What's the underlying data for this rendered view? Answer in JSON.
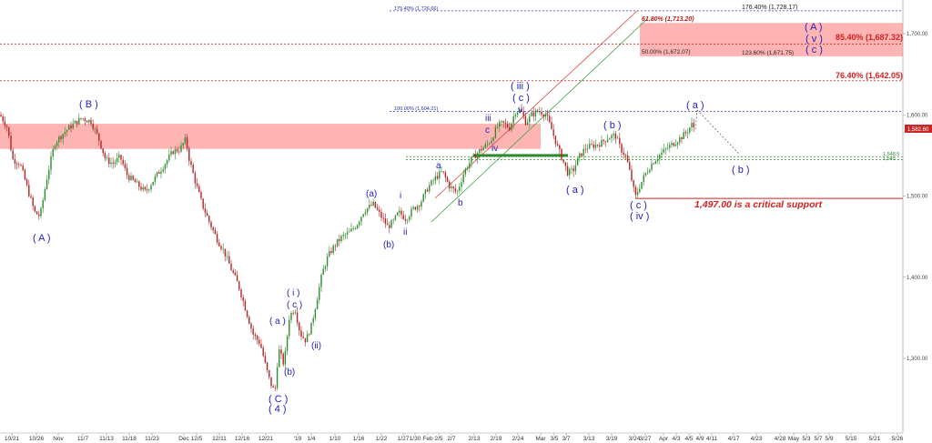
{
  "chart_data": {
    "type": "candlestick",
    "ylim": [
      1215,
      1737
    ],
    "y_ticks": [
      "1,700.00",
      "1,600.00",
      "1,500.00",
      "1,400.00",
      "1,300.00"
    ],
    "x_ticks": [
      "10/21",
      "10/26",
      "Nov",
      "11/7",
      "11/13",
      "11/18",
      "11/23",
      "Dec",
      "12/5",
      "12/11",
      "12/16",
      "12/21",
      "'19",
      "1/4",
      "1/10",
      "1/16",
      "1/22",
      "1/27",
      "1/30",
      "Feb",
      "2/5",
      "2/7",
      "2/13",
      "2/19",
      "2/24",
      "Mar",
      "3/5",
      "3/7",
      "3/13",
      "3/19",
      "3/24",
      "3/27",
      "Apr",
      "4/3",
      "4/5",
      "4/9",
      "4/11",
      "4/17",
      "4/23",
      "4/28",
      "May",
      "5/3",
      "5/7",
      "5/9",
      "5/15",
      "5/21",
      "5/26"
    ],
    "last_price": "1,582.60",
    "colors": {
      "up": "#2e8b2e",
      "down": "#b22222",
      "wave_label": "#1f1fbf",
      "fib_red": "#d22020",
      "fib_blue": "#3a3ad0",
      "zone": "#ff9b9b"
    },
    "price_path": [
      [
        0,
        1600
      ],
      [
        8,
        1585
      ],
      [
        14,
        1545
      ],
      [
        22,
        1540
      ],
      [
        30,
        1510
      ],
      [
        38,
        1480
      ],
      [
        44,
        1475
      ],
      [
        52,
        1525
      ],
      [
        60,
        1565
      ],
      [
        70,
        1578
      ],
      [
        80,
        1588
      ],
      [
        90,
        1596
      ],
      [
        100,
        1592
      ],
      [
        108,
        1572
      ],
      [
        116,
        1545
      ],
      [
        124,
        1540
      ],
      [
        132,
        1548
      ],
      [
        140,
        1525
      ],
      [
        150,
        1515
      ],
      [
        160,
        1505
      ],
      [
        170,
        1522
      ],
      [
        180,
        1538
      ],
      [
        190,
        1555
      ],
      [
        198,
        1558
      ],
      [
        204,
        1570
      ],
      [
        208,
        1545
      ],
      [
        214,
        1520
      ],
      [
        222,
        1490
      ],
      [
        230,
        1468
      ],
      [
        238,
        1448
      ],
      [
        246,
        1432
      ],
      [
        254,
        1410
      ],
      [
        262,
        1390
      ],
      [
        270,
        1360
      ],
      [
        278,
        1330
      ],
      [
        286,
        1318
      ],
      [
        292,
        1290
      ],
      [
        297,
        1270
      ],
      [
        302,
        1258
      ],
      [
        306,
        1312
      ],
      [
        312,
        1292
      ],
      [
        318,
        1352
      ],
      [
        324,
        1362
      ],
      [
        330,
        1330
      ],
      [
        336,
        1322
      ],
      [
        342,
        1340
      ],
      [
        348,
        1372
      ],
      [
        354,
        1405
      ],
      [
        360,
        1425
      ],
      [
        368,
        1440
      ],
      [
        376,
        1450
      ],
      [
        384,
        1455
      ],
      [
        392,
        1465
      ],
      [
        400,
        1482
      ],
      [
        410,
        1490
      ],
      [
        418,
        1476
      ],
      [
        426,
        1462
      ],
      [
        432,
        1468
      ],
      [
        438,
        1480
      ],
      [
        446,
        1472
      ],
      [
        454,
        1484
      ],
      [
        462,
        1492
      ],
      [
        470,
        1510
      ],
      [
        478,
        1522
      ],
      [
        486,
        1530
      ],
      [
        494,
        1512
      ],
      [
        502,
        1504
      ],
      [
        510,
        1530
      ],
      [
        518,
        1545
      ],
      [
        526,
        1555
      ],
      [
        534,
        1562
      ],
      [
        540,
        1570
      ],
      [
        546,
        1585
      ],
      [
        552,
        1590
      ],
      [
        560,
        1584
      ],
      [
        566,
        1604
      ],
      [
        572,
        1606
      ],
      [
        578,
        1590
      ],
      [
        584,
        1600
      ],
      [
        592,
        1605
      ],
      [
        600,
        1600
      ],
      [
        606,
        1582
      ],
      [
        612,
        1562
      ],
      [
        618,
        1545
      ],
      [
        624,
        1528
      ],
      [
        630,
        1532
      ],
      [
        636,
        1548
      ],
      [
        644,
        1560
      ],
      [
        652,
        1562
      ],
      [
        660,
        1565
      ],
      [
        668,
        1572
      ],
      [
        676,
        1575
      ],
      [
        682,
        1558
      ],
      [
        688,
        1548
      ],
      [
        694,
        1520
      ],
      [
        698,
        1498
      ],
      [
        702,
        1510
      ],
      [
        708,
        1525
      ],
      [
        716,
        1540
      ],
      [
        724,
        1550
      ],
      [
        732,
        1558
      ],
      [
        740,
        1565
      ],
      [
        748,
        1572
      ],
      [
        754,
        1578
      ],
      [
        760,
        1588
      ],
      [
        764,
        1582
      ]
    ],
    "projection": {
      "upper_path": [
        [
          764,
          1582
        ],
        [
          766,
          1606
        ]
      ],
      "down_path": [
        [
          766,
          1606
        ],
        [
          812,
          1552
        ]
      ],
      "target_label": "( b )"
    },
    "zones": [
      {
        "top": 1589,
        "bottom": 1558,
        "color": "#ff9b9b"
      },
      {
        "top": 1713.2,
        "bottom": 1672.07,
        "color": "#ff9b9b"
      }
    ],
    "hlines": [
      {
        "y": 1728.17,
        "label": "176.40% (1,728.17)",
        "color": "#3a3ad0",
        "style": "dotted"
      },
      {
        "y": 1687.32,
        "label": "85.40% (1,687.32)",
        "color": "#d22020",
        "style": "dotted"
      },
      {
        "y": 1642.05,
        "label": "76.40% (1,642.05)",
        "color": "#d22020",
        "style": "dotted"
      },
      {
        "y": 1604.21,
        "label": "100.00% (1,604.21)",
        "color": "#3a3ad0",
        "style": "dotted"
      },
      {
        "y": 1548.5,
        "label": "1,548.5",
        "color": "#2e8b2e",
        "style": "dotted"
      },
      {
        "y": 1545,
        "label": "1,545",
        "color": "#2e8b2e",
        "style": "dotted"
      },
      {
        "y": 1497,
        "label": "",
        "color": "#d22020",
        "style": "solid"
      }
    ],
    "fib_labels": {
      "top_left": "175.40% (1,726.66)",
      "top_right": "176.40% (1,728.17)",
      "zone_top": "61.80% (1,713.20)",
      "zone_bottom_left": "50.00% (1,672.07)",
      "zone_bottom_right": "123.60% (1,671.75)",
      "r85": "85.40% (1,687.32)",
      "r76": "76.40% (1,642.05)",
      "p100": "100.00% (1,604.21)",
      "green1": "1,548.5",
      "green2": "1,545"
    },
    "critical_text": "1,497.00 is a critical support",
    "wave_labels": [
      "( A )",
      "( B )",
      "( a )",
      "( i )",
      "( c )",
      "(ii)",
      "( C )",
      "( 4 )",
      "(b)",
      "(a)",
      "i",
      "(b)",
      "ii",
      "a",
      "b",
      "iii",
      "c",
      "iv",
      "( iii )",
      "( c )",
      "v",
      "( b )",
      "( a )",
      "( c )",
      "( iv )",
      "( a )",
      "( b )",
      "( A )",
      "( v )",
      "( c )"
    ]
  }
}
